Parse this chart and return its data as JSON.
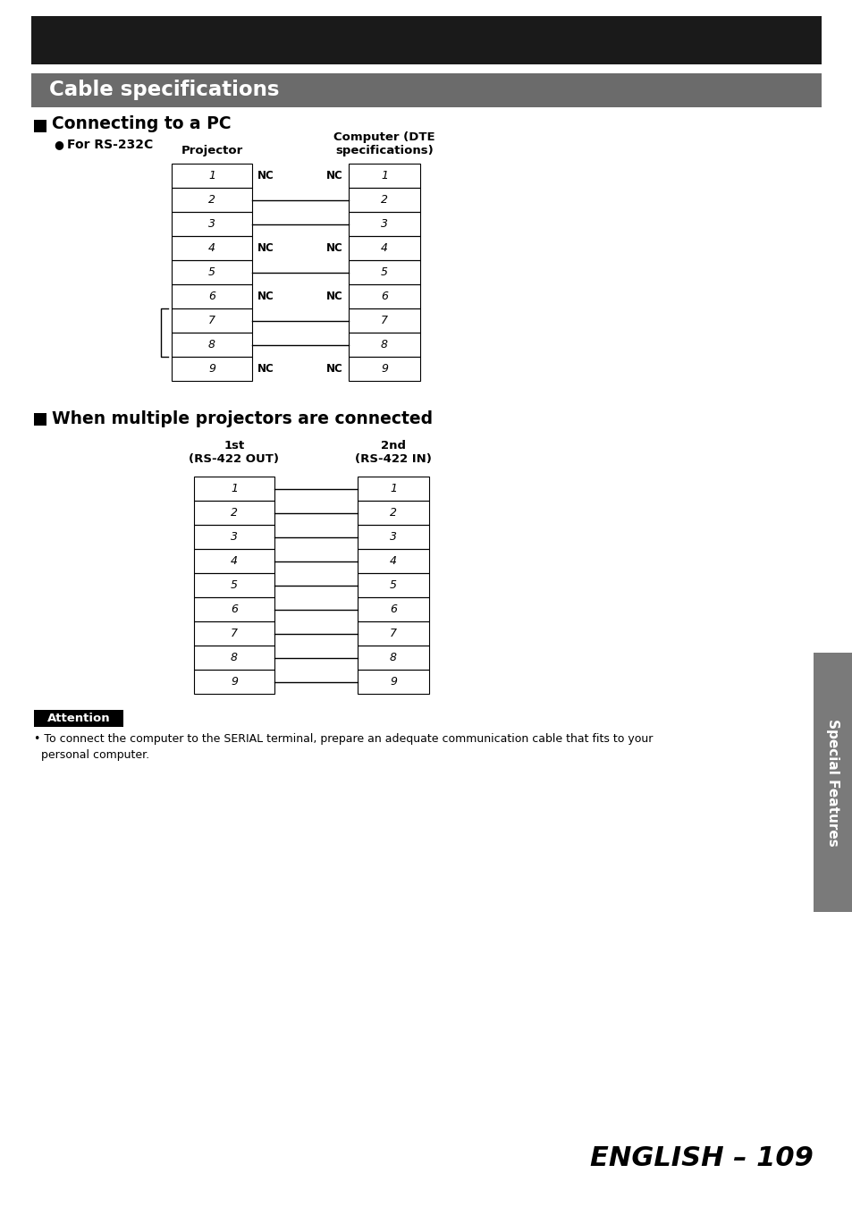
{
  "page_bg": "#ffffff",
  "top_black_bar_color": "#1a1a1a",
  "gray_bar_color": "#6b6b6b",
  "gray_bar_text": "Cable specifications",
  "section1_title": "Connecting to a PC",
  "section1_sub": "For RS-232C",
  "projector_label": "Projector",
  "computer_label_line1": "Computer (DTE",
  "computer_label_line2": "specifications)",
  "nc_rows_1": [
    1,
    4,
    6,
    9
  ],
  "section2_title": "When multiple projectors are connected",
  "label_1st_line1": "1st",
  "label_1st_line2": "(RS-422 OUT)",
  "label_2nd_line1": "2nd",
  "label_2nd_line2": "(RS-422 IN)",
  "attention_text": "Attention",
  "attention_body_line1": "• To connect the computer to the SERIAL terminal, prepare an adequate communication cable that fits to your",
  "attention_body_line2": "  personal computer.",
  "side_label": "Special Features",
  "page_num_italic": "ENGLISH",
  "page_num_rest": " – 109",
  "n_rows": 9
}
